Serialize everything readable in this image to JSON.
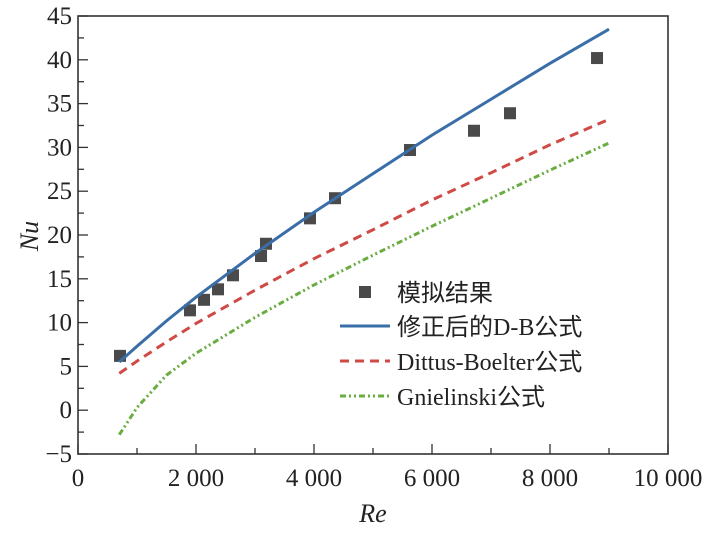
{
  "chart_data": {
    "type": "line",
    "title": "",
    "xlabel": "Re",
    "ylabel": "Nu",
    "xlim": [
      0,
      10000
    ],
    "ylim": [
      -5,
      45
    ],
    "x_ticks": [
      0,
      2000,
      4000,
      6000,
      8000,
      10000
    ],
    "x_tick_labels": [
      "0",
      "2 000",
      "4 000",
      "6 000",
      "8 000",
      "10 000"
    ],
    "y_ticks": [
      -5,
      0,
      5,
      10,
      15,
      20,
      25,
      30,
      35,
      40,
      45
    ],
    "y_tick_labels": [
      "−5",
      "0",
      "5",
      "10",
      "15",
      "20",
      "25",
      "30",
      "35",
      "40",
      "45"
    ],
    "grid": false,
    "legend_position": "lower-right",
    "series": [
      {
        "name": "模拟结果",
        "kind": "scatter",
        "color": "#4a4a4a",
        "x": [
          712,
          1898,
          2136,
          2373,
          2627,
          3102,
          3186,
          3932,
          4356,
          5627,
          6712,
          7322,
          8797
        ],
        "y": [
          6.2,
          11.4,
          12.6,
          13.8,
          15.4,
          17.6,
          19.0,
          21.9,
          24.2,
          29.7,
          31.9,
          33.9,
          40.2
        ]
      },
      {
        "name": "修正后的D-B公式",
        "kind": "line",
        "style": "solid",
        "color": "#3a6ea8",
        "x": [
          700,
          1000,
          1500,
          2000,
          3000,
          4000,
          5000,
          6000,
          7000,
          8000,
          9000
        ],
        "y": [
          5.5,
          7.3,
          10.2,
          12.9,
          17.9,
          22.6,
          27.0,
          31.4,
          35.5,
          39.6,
          43.5
        ]
      },
      {
        "name": "Dittus-Boelter公式",
        "kind": "line",
        "style": "dashed",
        "color": "#d04a45",
        "x": [
          700,
          1000,
          1500,
          2000,
          3000,
          4000,
          5000,
          6000,
          7000,
          8000,
          9000
        ],
        "y": [
          4.2,
          5.6,
          7.8,
          9.9,
          13.7,
          17.3,
          20.6,
          24.0,
          27.1,
          30.3,
          33.2
        ]
      },
      {
        "name": "Gnielinski公式",
        "kind": "line",
        "style": "dash-dot-dot",
        "color": "#6aac3f",
        "x": [
          700,
          1000,
          1500,
          2000,
          3000,
          4000,
          5000,
          6000,
          7000,
          8000,
          9000
        ],
        "y": [
          -2.8,
          0.3,
          4.0,
          6.5,
          10.6,
          14.3,
          17.7,
          21.0,
          24.2,
          27.4,
          30.5
        ]
      }
    ]
  }
}
